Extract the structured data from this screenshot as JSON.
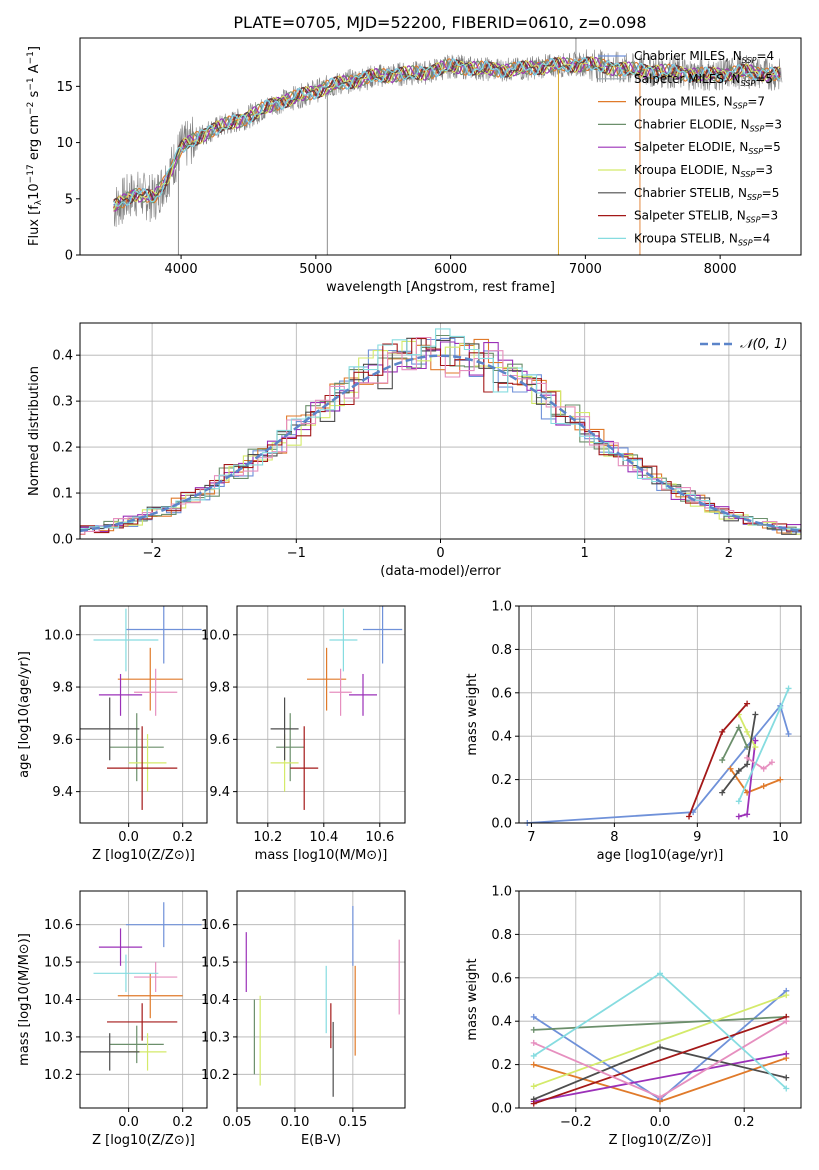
{
  "figure": {
    "title": "PLATE=0705, MJD=52200, FIBERID=0610, z=0.098",
    "colors": [
      "#6f91d9",
      "#e07a2a",
      "#6b8f6b",
      "#9b30b8",
      "#d4ea6a",
      "#4d4d4d",
      "#a31818",
      "#e68fbf",
      "#86dce0",
      "#f39c12"
    ],
    "series_names": [
      "Chabrier MILES, N_SSP=4",
      "Salpeter MILES, N_SSP=5",
      "Kroupa MILES, N_SSP=7",
      "Chabrier ELODIE, N_SSP=3",
      "Salpeter ELODIE, N_SSP=5",
      "Kroupa ELODIE, N_SSP=3",
      "Chabrier STELIB, N_SSP=5",
      "Salpeter STELIB, N_SSP=3",
      "Kroupa STELIB, N_SSP=4"
    ],
    "legend_series_colors": [
      "#6f91d9",
      "#9aa7b0",
      "#e07a2a",
      "#6b8f6b",
      "#9b30b8",
      "#d4ea6a",
      "#4d4d4d",
      "#a31818",
      "#86dce0"
    ]
  },
  "chart_data": [
    {
      "type": "line",
      "panel": "spectrum",
      "xlabel": "wavelength [Angstrom, rest frame]",
      "ylabel": "Flux [f_λ 10^-17 erg cm^-2 s^-1 A^-1]",
      "xlim": [
        3250,
        8600
      ],
      "ylim": [
        0,
        19.3
      ],
      "xticks": [
        4000,
        5000,
        6000,
        7000,
        8000
      ],
      "yticks": [
        0,
        5,
        10,
        15
      ],
      "legend": [
        {
          "label": "Chabrier MILES, N",
          "sub": "SSP",
          "n": "=4"
        },
        {
          "label": "Salpeter MILES, N",
          "sub": "SSP",
          "n": "=5"
        },
        {
          "label": "Kroupa MILES, N",
          "sub": "SSP",
          "n": "=7"
        },
        {
          "label": "Chabrier ELODIE, N",
          "sub": "SSP",
          "n": "=3"
        },
        {
          "label": "Salpeter ELODIE, N",
          "sub": "SSP",
          "n": "=5"
        },
        {
          "label": "Kroupa ELODIE, N",
          "sub": "SSP",
          "n": "=3"
        },
        {
          "label": "Chabrier STELIB, N",
          "sub": "SSP",
          "n": "=5"
        },
        {
          "label": "Salpeter STELIB, N",
          "sub": "SSP",
          "n": "=3"
        },
        {
          "label": "Kroupa STELIB, N",
          "sub": "SSP",
          "n": "=4"
        }
      ],
      "continuum": {
        "x": [
          3500,
          3650,
          3800,
          3900,
          4000,
          4200,
          4500,
          4700,
          4900,
          5100,
          5300,
          5500,
          5800,
          6000,
          6300,
          6500,
          6700,
          7000,
          7300,
          7600,
          7900,
          8200,
          8450
        ],
        "y": [
          4.2,
          5.5,
          5.0,
          7.0,
          9.5,
          11.0,
          12.3,
          13.5,
          14.2,
          15.0,
          15.6,
          16.0,
          16.2,
          16.8,
          16.5,
          16.5,
          16.8,
          17.0,
          16.5,
          16.3,
          16.0,
          16.3,
          16.0
        ]
      }
    },
    {
      "type": "bar",
      "panel": "residual-histogram",
      "xlabel": "(data-model)/error",
      "ylabel": "Normed distribution",
      "xlim": [
        -2.5,
        2.5
      ],
      "ylim": [
        0,
        0.47
      ],
      "xticks": [
        -2,
        -1,
        0,
        1,
        2
      ],
      "yticks": [
        0,
        0.1,
        0.2,
        0.3,
        0.4
      ],
      "legend": "N(0,1)",
      "reference_curve": "gaussian mean 0 sigma 1"
    },
    {
      "type": "scatter",
      "panel": "age-vs-Z",
      "xlabel": "Z [log10(Z/Z⊙)]",
      "ylabel": "age [log10(age/yr)]",
      "xlim": [
        -0.18,
        0.29
      ],
      "ylim": [
        9.28,
        10.11
      ],
      "xticks": [
        0.0,
        0.2
      ],
      "yticks": [
        9.4,
        9.6,
        9.8,
        10.0
      ],
      "points": [
        {
          "x": 0.13,
          "y": 10.02,
          "xerr": 0.14,
          "yerr": 0.13
        },
        {
          "x": 0.08,
          "y": 9.83,
          "xerr": 0.12,
          "yerr": 0.12
        },
        {
          "x": 0.03,
          "y": 9.57,
          "xerr": 0.1,
          "yerr": 0.13
        },
        {
          "x": -0.03,
          "y": 9.77,
          "xerr": 0.08,
          "yerr": 0.08
        },
        {
          "x": 0.07,
          "y": 9.51,
          "xerr": 0.07,
          "yerr": 0.11
        },
        {
          "x": -0.07,
          "y": 9.64,
          "xerr": 0.11,
          "yerr": 0.12
        },
        {
          "x": 0.05,
          "y": 9.49,
          "xerr": 0.13,
          "yerr": 0.16
        },
        {
          "x": 0.1,
          "y": 9.78,
          "xerr": 0.08,
          "yerr": 0.09
        },
        {
          "x": -0.01,
          "y": 9.98,
          "xerr": 0.12,
          "yerr": 0.12
        }
      ]
    },
    {
      "type": "scatter",
      "panel": "age-vs-mass",
      "xlabel": "mass [log10(M/M⊙)]",
      "ylabel": "",
      "xlim": [
        10.09,
        10.69
      ],
      "ylim": [
        9.28,
        10.11
      ],
      "xticks": [
        10.2,
        10.4,
        10.6
      ],
      "yticks": [
        9.4,
        9.6,
        9.8,
        10.0
      ],
      "points": [
        {
          "x": 10.61,
          "y": 10.02,
          "xerr": 0.07,
          "yerr": 0.13
        },
        {
          "x": 10.41,
          "y": 9.83,
          "xerr": 0.07,
          "yerr": 0.12
        },
        {
          "x": 10.28,
          "y": 9.57,
          "xerr": 0.05,
          "yerr": 0.13
        },
        {
          "x": 10.54,
          "y": 9.77,
          "xerr": 0.05,
          "yerr": 0.08
        },
        {
          "x": 10.26,
          "y": 9.51,
          "xerr": 0.05,
          "yerr": 0.11
        },
        {
          "x": 10.26,
          "y": 9.64,
          "xerr": 0.05,
          "yerr": 0.12
        },
        {
          "x": 10.33,
          "y": 9.49,
          "xerr": 0.05,
          "yerr": 0.16
        },
        {
          "x": 10.46,
          "y": 9.78,
          "xerr": 0.04,
          "yerr": 0.09
        },
        {
          "x": 10.47,
          "y": 9.98,
          "xerr": 0.05,
          "yerr": 0.12
        }
      ]
    },
    {
      "type": "line",
      "panel": "mass-weight-vs-age",
      "xlabel": "age [log10(age/yr)]",
      "ylabel": "mass weight",
      "xlim": [
        6.85,
        10.25
      ],
      "ylim": [
        0,
        1.0
      ],
      "xticks": [
        7,
        8,
        9,
        10
      ],
      "yticks": [
        0.0,
        0.2,
        0.4,
        0.6,
        0.8,
        1.0
      ],
      "series": [
        {
          "values": [
            [
              6.95,
              0.0
            ],
            [
              8.95,
              0.05
            ],
            [
              10.0,
              0.54
            ],
            [
              10.1,
              0.41
            ]
          ]
        },
        {
          "values": [
            [
              9.4,
              0.25
            ],
            [
              9.6,
              0.14
            ],
            [
              9.8,
              0.17
            ],
            [
              10.0,
              0.2
            ]
          ]
        },
        {
          "values": [
            [
              9.3,
              0.29
            ],
            [
              9.5,
              0.44
            ],
            [
              9.6,
              0.35
            ]
          ]
        },
        {
          "values": [
            [
              9.5,
              0.03
            ],
            [
              9.6,
              0.04
            ],
            [
              9.7,
              0.38
            ]
          ]
        },
        {
          "values": [
            [
              9.5,
              0.5
            ],
            [
              9.6,
              0.42
            ],
            [
              9.7,
              0.35
            ]
          ]
        },
        {
          "values": [
            [
              9.3,
              0.14
            ],
            [
              9.5,
              0.24
            ],
            [
              9.6,
              0.27
            ],
            [
              9.7,
              0.5
            ]
          ]
        },
        {
          "values": [
            [
              8.9,
              0.03
            ],
            [
              9.3,
              0.42
            ],
            [
              9.6,
              0.55
            ]
          ]
        },
        {
          "values": [
            [
              9.6,
              0.3
            ],
            [
              9.8,
              0.25
            ],
            [
              9.9,
              0.28
            ]
          ]
        },
        {
          "values": [
            [
              9.5,
              0.1
            ],
            [
              10.0,
              0.53
            ],
            [
              10.1,
              0.62
            ]
          ]
        }
      ]
    },
    {
      "type": "scatter",
      "panel": "mass-vs-Z",
      "xlabel": "Z [log10(Z/Z⊙)]",
      "ylabel": "mass [log10(M/M⊙)]",
      "xlim": [
        -0.18,
        0.29
      ],
      "ylim": [
        10.11,
        10.69
      ],
      "xticks": [
        0.0,
        0.2
      ],
      "yticks": [
        10.2,
        10.3,
        10.4,
        10.5,
        10.6
      ],
      "points": [
        {
          "x": 0.13,
          "y": 10.6,
          "xerr": 0.14,
          "yerr": 0.06
        },
        {
          "x": 0.08,
          "y": 10.41,
          "xerr": 0.12,
          "yerr": 0.06
        },
        {
          "x": 0.03,
          "y": 10.28,
          "xerr": 0.1,
          "yerr": 0.05
        },
        {
          "x": -0.03,
          "y": 10.54,
          "xerr": 0.08,
          "yerr": 0.05
        },
        {
          "x": 0.07,
          "y": 10.26,
          "xerr": 0.07,
          "yerr": 0.05
        },
        {
          "x": -0.07,
          "y": 10.26,
          "xerr": 0.11,
          "yerr": 0.05
        },
        {
          "x": 0.05,
          "y": 10.34,
          "xerr": 0.13,
          "yerr": 0.05
        },
        {
          "x": 0.1,
          "y": 10.46,
          "xerr": 0.08,
          "yerr": 0.04
        },
        {
          "x": -0.01,
          "y": 10.47,
          "xerr": 0.12,
          "yerr": 0.05
        }
      ]
    },
    {
      "type": "scatter",
      "panel": "mass-vs-EBV",
      "xlabel": "E(B-V)",
      "ylabel": "",
      "xlim": [
        0.05,
        0.195
      ],
      "ylim": [
        10.11,
        10.69
      ],
      "xticks": [
        0.05,
        0.1,
        0.15
      ],
      "yticks": [
        10.2,
        10.3,
        10.4,
        10.5,
        10.6
      ],
      "points": [
        {
          "x": 0.15,
          "y": 10.57,
          "yerr": 0.08
        },
        {
          "x": 0.152,
          "y": 10.37,
          "yerr": 0.12
        },
        {
          "x": 0.065,
          "y": 10.3,
          "yerr": 0.1
        },
        {
          "x": 0.058,
          "y": 10.5,
          "yerr": 0.08
        },
        {
          "x": 0.07,
          "y": 10.29,
          "yerr": 0.12
        },
        {
          "x": 0.133,
          "y": 10.24,
          "yerr": 0.1
        },
        {
          "x": 0.131,
          "y": 10.33,
          "yerr": 0.06
        },
        {
          "x": 0.19,
          "y": 10.46,
          "yerr": 0.1
        },
        {
          "x": 0.127,
          "y": 10.4,
          "yerr": 0.09
        }
      ]
    },
    {
      "type": "line",
      "panel": "mass-weight-vs-Z",
      "xlabel": "Z [log10(Z/Z⊙)]",
      "ylabel": "mass weight",
      "xlim": [
        -0.335,
        0.335
      ],
      "ylim": [
        0,
        1.0
      ],
      "xticks": [
        -0.2,
        0.0,
        0.2
      ],
      "yticks": [
        0.0,
        0.2,
        0.4,
        0.6,
        0.8,
        1.0
      ],
      "series": [
        {
          "values": [
            [
              -0.3,
              0.42
            ],
            [
              0.0,
              0.04
            ],
            [
              0.3,
              0.54
            ]
          ]
        },
        {
          "values": [
            [
              -0.3,
              0.2
            ],
            [
              0.0,
              0.03
            ],
            [
              0.3,
              0.23
            ]
          ]
        },
        {
          "values": [
            [
              -0.3,
              0.36
            ],
            [
              0.3,
              0.42
            ]
          ]
        },
        {
          "values": [
            [
              -0.3,
              0.03
            ],
            [
              0.3,
              0.25
            ]
          ]
        },
        {
          "values": [
            [
              -0.3,
              0.1
            ],
            [
              0.3,
              0.52
            ]
          ]
        },
        {
          "values": [
            [
              -0.3,
              0.04
            ],
            [
              0.0,
              0.28
            ],
            [
              0.3,
              0.14
            ]
          ]
        },
        {
          "values": [
            [
              -0.3,
              0.02
            ],
            [
              0.3,
              0.42
            ]
          ]
        },
        {
          "values": [
            [
              -0.3,
              0.3
            ],
            [
              0.0,
              0.05
            ],
            [
              0.3,
              0.4
            ]
          ]
        },
        {
          "values": [
            [
              -0.3,
              0.24
            ],
            [
              0.0,
              0.62
            ],
            [
              0.3,
              0.09
            ]
          ]
        }
      ]
    }
  ]
}
